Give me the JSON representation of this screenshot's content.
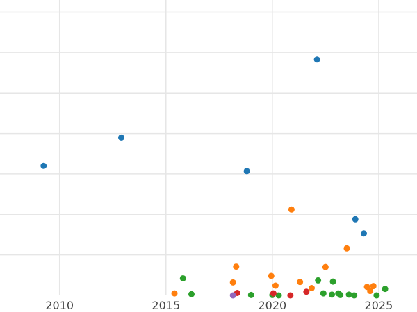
{
  "chart_data": {
    "type": "scatter",
    "title": "",
    "xlabel": "",
    "ylabel": "",
    "xlim": [
      2007.2,
      2026.8
    ],
    "ylim": [
      0,
      7.3
    ],
    "xticks": [
      2010,
      2015,
      2020,
      2025
    ],
    "yticks": [
      1,
      2,
      3,
      4,
      5,
      6,
      7
    ],
    "grid": true,
    "legend": "none",
    "series": [
      {
        "color": "#1f77b4",
        "points": [
          [
            2009.25,
            3.2
          ],
          [
            2012.9,
            3.9
          ],
          [
            2018.8,
            3.07
          ],
          [
            2022.1,
            5.83
          ],
          [
            2023.9,
            1.88
          ],
          [
            2024.3,
            1.53
          ]
        ]
      },
      {
        "color": "#ff7f0e",
        "points": [
          [
            2015.4,
            0.05
          ],
          [
            2018.15,
            0.32
          ],
          [
            2018.3,
            0.71
          ],
          [
            2019.95,
            0.48
          ],
          [
            2020.15,
            0.24
          ],
          [
            2020.9,
            2.12
          ],
          [
            2021.3,
            0.33
          ],
          [
            2021.85,
            0.18
          ],
          [
            2022.5,
            0.7
          ],
          [
            2023.5,
            1.16
          ],
          [
            2024.45,
            0.21
          ],
          [
            2024.6,
            0.11
          ],
          [
            2024.75,
            0.23
          ]
        ]
      },
      {
        "color": "#2ca02c",
        "points": [
          [
            2015.8,
            0.42
          ],
          [
            2016.2,
            0.03
          ],
          [
            2019.0,
            0.01
          ],
          [
            2020.0,
            0.01
          ],
          [
            2020.3,
            0.0
          ],
          [
            2022.15,
            0.37
          ],
          [
            2022.4,
            0.05
          ],
          [
            2022.8,
            0.02
          ],
          [
            2022.85,
            0.34
          ],
          [
            2023.1,
            0.05
          ],
          [
            2023.2,
            0.01
          ],
          [
            2023.6,
            0.02
          ],
          [
            2023.85,
            0.0
          ],
          [
            2024.9,
            0.0
          ],
          [
            2025.3,
            0.16
          ]
        ]
      },
      {
        "color": "#d62728",
        "points": [
          [
            2018.35,
            0.06
          ],
          [
            2020.05,
            0.05
          ],
          [
            2020.85,
            0.0
          ],
          [
            2021.6,
            0.09
          ]
        ]
      },
      {
        "color": "#9467bd",
        "points": [
          [
            2018.15,
            0.0
          ]
        ]
      }
    ]
  }
}
